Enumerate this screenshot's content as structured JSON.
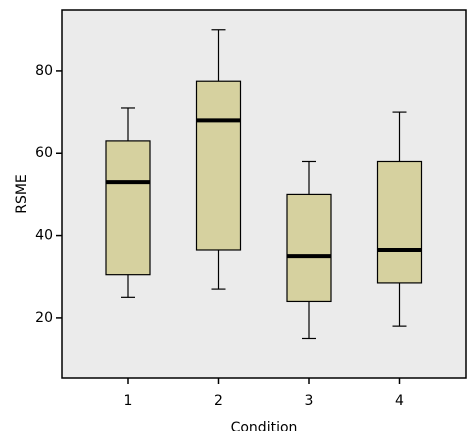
{
  "chart_data": {
    "type": "box",
    "x_label": "Condition",
    "y_label": "RSME",
    "categories": [
      "1",
      "2",
      "3",
      "4"
    ],
    "min": [
      25,
      27,
      15,
      18
    ],
    "q1": [
      30.5,
      36.5,
      24,
      28.5
    ],
    "median": [
      53,
      68,
      35,
      36.5
    ],
    "q3": [
      63,
      77.5,
      50,
      58
    ],
    "max": [
      71,
      90,
      58,
      70
    ],
    "color": "#d6d19f",
    "background": "#ebebeb",
    "ylim": [
      5.4,
      94.8
    ],
    "yticks": [
      20,
      40,
      60,
      80
    ]
  }
}
